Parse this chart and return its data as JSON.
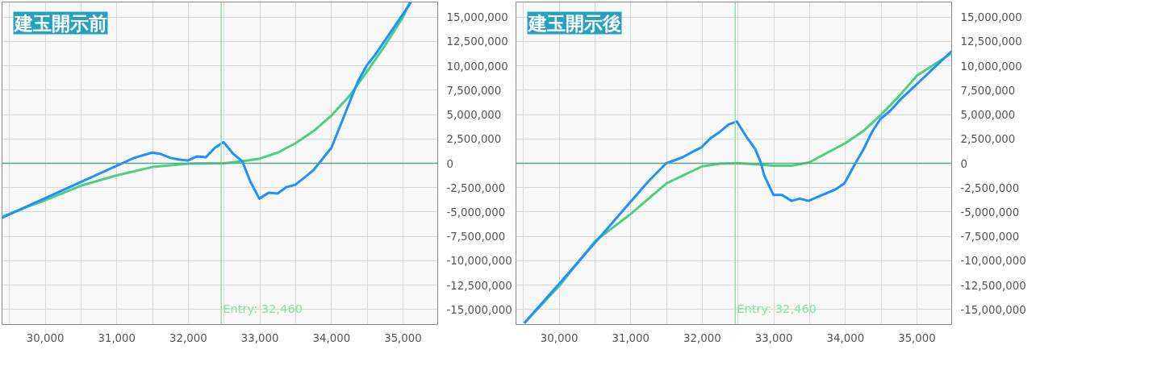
{
  "chart_data": [
    {
      "type": "line",
      "title": "建玉開示前",
      "xlim": [
        29396,
        35485
      ],
      "ylim": [
        -16550000,
        16550000
      ],
      "xticks": [
        {
          "value": 29500,
          "label": null
        },
        {
          "value": 30000,
          "label": "30,000"
        },
        {
          "value": 30500,
          "label": null
        },
        {
          "value": 31000,
          "label": "31,000"
        },
        {
          "value": 31500,
          "label": null
        },
        {
          "value": 32000,
          "label": "32,000"
        },
        {
          "value": 32500,
          "label": null
        },
        {
          "value": 33000,
          "label": "33,000"
        },
        {
          "value": 33500,
          "label": null
        },
        {
          "value": 34000,
          "label": "34,000"
        },
        {
          "value": 34500,
          "label": null
        },
        {
          "value": 35000,
          "label": "35,000"
        }
      ],
      "yticks": [
        {
          "value": -15000000,
          "label": "-15,000,000"
        },
        {
          "value": -12500000,
          "label": "-12,500,000"
        },
        {
          "value": -10000000,
          "label": "-10,000,000"
        },
        {
          "value": -7500000,
          "label": "-7,500,000"
        },
        {
          "value": -5000000,
          "label": "-5,000,000"
        },
        {
          "value": -2500000,
          "label": "-2,500,000"
        },
        0,
        {
          "value": 2500000,
          "label": "2,500,000"
        },
        {
          "value": 5000000,
          "label": "5,000,000"
        },
        {
          "value": 7500000,
          "label": "7,500,000"
        },
        {
          "value": 10000000,
          "label": "10,000,000"
        },
        {
          "value": 12500000,
          "label": "12,500,000"
        },
        {
          "value": 15000000,
          "label": "15,000,000"
        }
      ],
      "grid": true,
      "ref_lines": [
        {
          "axis": "x",
          "value": 32460,
          "label": "Entry: 32,460",
          "color": "#8fe0a8"
        },
        {
          "axis": "y",
          "value": 0,
          "color": "#5aa58a"
        }
      ],
      "series": [
        {
          "color": "#4cd07d",
          "x": [
            29396,
            29700,
            30000,
            30500,
            31000,
            31500,
            32000,
            32500,
            32750,
            33000,
            33250,
            33500,
            33750,
            34000,
            34250,
            34500,
            34750,
            35000,
            35095
          ],
          "values": [
            -5500000,
            -4600000,
            -3790000,
            -2300000,
            -1240000,
            -380000,
            -50000,
            0,
            200000,
            480000,
            1100000,
            2070000,
            3300000,
            4900000,
            6900000,
            9450000,
            12100000,
            15000000,
            16500000
          ]
        },
        {
          "color": "#1e90ff",
          "x": [
            29396,
            31241,
            31496,
            31615,
            31751,
            31862,
            31990,
            32117,
            32245,
            32372,
            32492,
            32619,
            32755,
            32865,
            32993,
            33120,
            33248,
            33367,
            33495,
            33631,
            33750,
            33826,
            34000,
            34370,
            34498,
            34608,
            35110
          ],
          "values": [
            -5590000,
            550000,
            1100000,
            950000,
            550000,
            400000,
            280000,
            700000,
            620000,
            1600000,
            2170000,
            1030000,
            200000,
            -1860000,
            -3630000,
            -3030000,
            -3100000,
            -2460000,
            -2200000,
            -1420000,
            -690000,
            0,
            1590000,
            8400000,
            10100000,
            11100000,
            16500000
          ]
        }
      ]
    },
    {
      "type": "line",
      "title": "建玉開示後",
      "xlim": [
        29396,
        35485
      ],
      "ylim": [
        -16550000,
        16550000
      ],
      "xticks": [
        {
          "value": 29500,
          "label": null
        },
        {
          "value": 30000,
          "label": "30,000"
        },
        {
          "value": 30500,
          "label": null
        },
        {
          "value": 31000,
          "label": "31,000"
        },
        {
          "value": 31500,
          "label": null
        },
        {
          "value": 32000,
          "label": "32,000"
        },
        {
          "value": 32500,
          "label": null
        },
        {
          "value": 33000,
          "label": "33,000"
        },
        {
          "value": 33500,
          "label": null
        },
        {
          "value": 34000,
          "label": "34,000"
        },
        {
          "value": 34500,
          "label": null
        },
        {
          "value": 35000,
          "label": "35,000"
        }
      ],
      "yticks": [
        {
          "value": -15000000,
          "label": "-15,000,000"
        },
        {
          "value": -12500000,
          "label": "-12,500,000"
        },
        {
          "value": -10000000,
          "label": "-10,000,000"
        },
        {
          "value": -7500000,
          "label": "-7,500,000"
        },
        {
          "value": -5000000,
          "label": "-5,000,000"
        },
        {
          "value": -2500000,
          "label": "-2,500,000"
        },
        0,
        {
          "value": 2500000,
          "label": "2,500,000"
        },
        {
          "value": 5000000,
          "label": "5,000,000"
        },
        {
          "value": 7500000,
          "label": "7,500,000"
        },
        {
          "value": 10000000,
          "label": "10,000,000"
        },
        {
          "value": 12500000,
          "label": "12,500,000"
        },
        {
          "value": 15000000,
          "label": "15,000,000"
        }
      ],
      "grid": true,
      "ref_lines": [
        {
          "axis": "x",
          "value": 32460,
          "label": "Entry: 32,460",
          "color": "#8fe0a8"
        },
        {
          "axis": "y",
          "value": 0,
          "color": "#5aa58a"
        }
      ],
      "series": [
        {
          "color": "#4cd07d",
          "x": [
            29512,
            30000,
            30500,
            31000,
            31500,
            32000,
            32250,
            32500,
            32750,
            33000,
            33250,
            33500,
            33750,
            34000,
            34250,
            34500,
            34750,
            35000,
            35485
          ],
          "values": [
            -16400000,
            -12600000,
            -8000000,
            -5200000,
            -2050000,
            -310000,
            -50000,
            0,
            -100000,
            -250000,
            -250000,
            100000,
            1100000,
            2070000,
            3300000,
            5000000,
            6900000,
            9000000,
            11300000
          ]
        },
        {
          "color": "#1e90ff",
          "x": [
            29512,
            30000,
            31241,
            31496,
            31615,
            31726,
            31862,
            31990,
            32117,
            32236,
            32372,
            32483,
            32619,
            32738,
            32815,
            32865,
            32993,
            33112,
            33248,
            33359,
            33486,
            33614,
            33861,
            33988,
            34140,
            34251,
            34379,
            34490,
            34626,
            34762,
            35485
          ],
          "values": [
            -16400000,
            -12370000,
            -1900000,
            0,
            310000,
            620000,
            1170000,
            1650000,
            2580000,
            3170000,
            4000000,
            4280000,
            2690000,
            1480000,
            140000,
            -1240000,
            -3240000,
            -3240000,
            -3860000,
            -3630000,
            -3860000,
            -3450000,
            -2690000,
            -2050000,
            0,
            1410000,
            3310000,
            4550000,
            5380000,
            6480000,
            11500000
          ]
        }
      ]
    }
  ]
}
